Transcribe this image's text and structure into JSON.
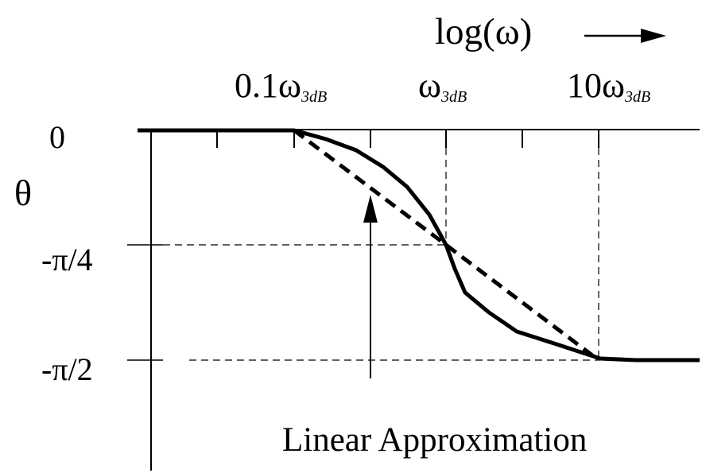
{
  "header": {
    "axis_title": "log(ω)"
  },
  "x_ticks": [
    {
      "base": "0.1ω",
      "sub": "3dB"
    },
    {
      "base": "ω",
      "sub": "3dB"
    },
    {
      "base": "10ω",
      "sub": "3dB"
    }
  ],
  "y_axis": {
    "title": "θ",
    "tick_labels": [
      "0",
      "-π/4",
      "-π/2"
    ]
  },
  "annotation": {
    "text": "Linear Approximation"
  },
  "colors": {
    "ink": "#000000",
    "background": "#ffffff"
  }
}
